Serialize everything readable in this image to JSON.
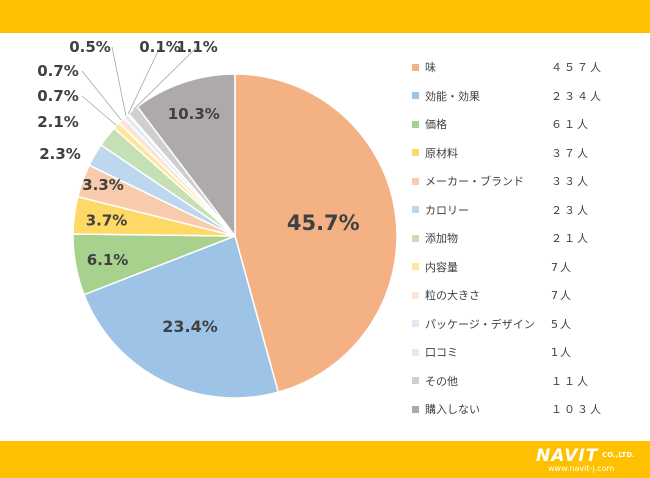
{
  "chart_data": {
    "type": "pie",
    "title": "",
    "series": [
      {
        "label": "味",
        "value_label": "４５７人",
        "value": 457,
        "percent": 45.7,
        "percent_label": "45.7%",
        "color": "#f4b183"
      },
      {
        "label": "効能・効果",
        "value_label": "２３４人",
        "value": 234,
        "percent": 23.4,
        "percent_label": "23.4%",
        "color": "#9dc3e6"
      },
      {
        "label": "価格",
        "value_label": "６１人",
        "value": 61,
        "percent": 6.1,
        "percent_label": "6.1%",
        "color": "#a9d18e"
      },
      {
        "label": "原材料",
        "value_label": "３７人",
        "value": 37,
        "percent": 3.7,
        "percent_label": "3.7%",
        "color": "#ffd966"
      },
      {
        "label": "メーカー・ブランド",
        "value_label": "３３人",
        "value": 33,
        "percent": 3.3,
        "percent_label": "3.3%",
        "color": "#f8cbad"
      },
      {
        "label": "カロリー",
        "value_label": "２３人",
        "value": 23,
        "percent": 2.3,
        "percent_label": "2.3%",
        "color": "#bdd7ee"
      },
      {
        "label": "添加物",
        "value_label": "２１人",
        "value": 21,
        "percent": 2.1,
        "percent_label": "2.1%",
        "color": "#c5e0b4"
      },
      {
        "label": "内容量",
        "value_label": "7人",
        "value": 7,
        "percent": 0.7,
        "percent_label": "0.7%",
        "color": "#ffe699"
      },
      {
        "label": "粒の大きさ",
        "value_label": "7人",
        "value": 7,
        "percent": 0.7,
        "percent_label": "0.7%",
        "color": "#fbe5d6"
      },
      {
        "label": "パッケージ・デザイン",
        "value_label": "5人",
        "value": 5,
        "percent": 0.5,
        "percent_label": "0.5%",
        "color": "#deebf7"
      },
      {
        "label": "口コミ",
        "value_label": "1人",
        "value": 1,
        "percent": 0.1,
        "percent_label": "0.1%",
        "color": "#e2f0d9"
      },
      {
        "label": "その他",
        "value_label": "１１人",
        "value": 11,
        "percent": 1.1,
        "percent_label": "1.1%",
        "color": "#d0cece"
      },
      {
        "label": "購入しない",
        "value_label": "１０３人",
        "value": 103,
        "percent": 10.3,
        "percent_label": "10.3%",
        "color": "#aeaaaa"
      }
    ],
    "legend_position": "right"
  },
  "branding": {
    "logo_text": "NAVIT",
    "logo_suffix": "CO.,LTD.",
    "url": "www.navit-j.com"
  },
  "colors": {
    "band": "#ffc000",
    "text": "#404040"
  }
}
